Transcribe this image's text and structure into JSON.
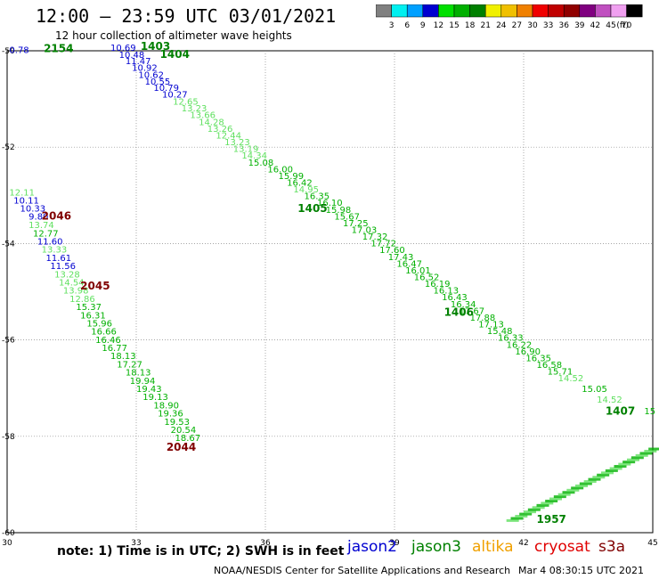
{
  "header": {
    "title": "12:00 – 23:59 UTC 03/01/2021",
    "subtitle": "12 hour collection of altimeter wave heights"
  },
  "legend": {
    "units": "(ft)",
    "bins": [
      {
        "label": "3",
        "color": "#808080"
      },
      {
        "label": "6",
        "color": "#00f0f0"
      },
      {
        "label": "9",
        "color": "#00a0ff"
      },
      {
        "label": "12",
        "color": "#0000d0"
      },
      {
        "label": "15",
        "color": "#00e000"
      },
      {
        "label": "18",
        "color": "#00b000"
      },
      {
        "label": "21",
        "color": "#008000"
      },
      {
        "label": "24",
        "color": "#f0f000"
      },
      {
        "label": "27",
        "color": "#f0c000"
      },
      {
        "label": "30",
        "color": "#f08000"
      },
      {
        "label": "33",
        "color": "#f00000"
      },
      {
        "label": "36",
        "color": "#c00000"
      },
      {
        "label": "39",
        "color": "#900000"
      },
      {
        "label": "42",
        "color": "#800080"
      },
      {
        "label": "45",
        "color": "#c050c0"
      },
      {
        "label": "70",
        "color": "#f0a0f0"
      },
      {
        "label": "",
        "color": "#000000"
      }
    ]
  },
  "map": {
    "lon_range": [
      30,
      45
    ],
    "lat_range": [
      -60,
      -50
    ],
    "lon_ticks": [
      {
        "value": 30,
        "label": "30"
      },
      {
        "value": 33,
        "label": "33"
      },
      {
        "value": 36,
        "label": "36"
      },
      {
        "value": 39,
        "label": "39"
      },
      {
        "value": 42,
        "label": "42"
      },
      {
        "value": 45,
        "label": "45"
      }
    ],
    "lat_ticks": [
      {
        "value": -50,
        "label": "-50"
      },
      {
        "value": -52,
        "label": "-52"
      },
      {
        "value": -54,
        "label": "-54"
      },
      {
        "value": -56,
        "label": "-56"
      },
      {
        "value": -58,
        "label": "-58"
      },
      {
        "value": -60,
        "label": "-60"
      }
    ],
    "track_labels": [
      {
        "text": "2154",
        "lon": 30.85,
        "lat": -50.03,
        "color": "#008000"
      },
      {
        "text": "1403",
        "lon": 33.1,
        "lat": -49.98,
        "color": "#008000"
      },
      {
        "text": "1404",
        "lon": 33.55,
        "lat": -50.15,
        "color": "#008000"
      },
      {
        "text": "1405",
        "lon": 36.75,
        "lat": -53.35,
        "color": "#008000"
      },
      {
        "text": "1406",
        "lon": 40.15,
        "lat": -55.5,
        "color": "#008000"
      },
      {
        "text": "1407",
        "lon": 43.9,
        "lat": -57.55,
        "color": "#008000"
      },
      {
        "text": "2046",
        "lon": 30.8,
        "lat": -53.5,
        "color": "#800000"
      },
      {
        "text": "2045",
        "lon": 31.7,
        "lat": -54.95,
        "color": "#800000"
      },
      {
        "text": "2044",
        "lon": 33.7,
        "lat": -58.3,
        "color": "#800000"
      },
      {
        "text": "1957",
        "lon": 42.3,
        "lat": -59.8,
        "color": "#008000"
      }
    ],
    "observations": [
      {
        "v": "0.78",
        "lon": 30.05,
        "lat": -50.05,
        "c": "#0000d0"
      },
      {
        "v": "10.69",
        "lon": 32.4,
        "lat": -50.0,
        "c": "#0000d0"
      },
      {
        "v": "10.48",
        "lon": 32.6,
        "lat": -50.15,
        "c": "#0000d0"
      },
      {
        "v": "11.47",
        "lon": 32.75,
        "lat": -50.28,
        "c": "#0000d0"
      },
      {
        "v": "10.92",
        "lon": 32.9,
        "lat": -50.42,
        "c": "#0000d0"
      },
      {
        "v": "10.62",
        "lon": 33.05,
        "lat": -50.56,
        "c": "#0000d0"
      },
      {
        "v": "10.55",
        "lon": 33.2,
        "lat": -50.7,
        "c": "#0000d0"
      },
      {
        "v": "10.79",
        "lon": 33.4,
        "lat": -50.83,
        "c": "#0000d0"
      },
      {
        "v": "10.27",
        "lon": 33.6,
        "lat": -50.97,
        "c": "#0000d0"
      },
      {
        "v": "12.65",
        "lon": 33.85,
        "lat": -51.12,
        "c": "#60e060"
      },
      {
        "v": "13.23",
        "lon": 34.05,
        "lat": -51.26,
        "c": "#60e060"
      },
      {
        "v": "13.66",
        "lon": 34.25,
        "lat": -51.4,
        "c": "#60e060"
      },
      {
        "v": "14.28",
        "lon": 34.45,
        "lat": -51.54,
        "c": "#60e060"
      },
      {
        "v": "13.26",
        "lon": 34.65,
        "lat": -51.68,
        "c": "#60e060"
      },
      {
        "v": "12.44",
        "lon": 34.85,
        "lat": -51.82,
        "c": "#60e060"
      },
      {
        "v": "13.23",
        "lon": 35.05,
        "lat": -51.96,
        "c": "#60e060"
      },
      {
        "v": "13.19",
        "lon": 35.25,
        "lat": -52.1,
        "c": "#60e060"
      },
      {
        "v": "14.34",
        "lon": 35.45,
        "lat": -52.24,
        "c": "#60e060"
      },
      {
        "v": "15.08",
        "lon": 35.6,
        "lat": -52.38,
        "c": "#00b000"
      },
      {
        "v": "16.00",
        "lon": 36.05,
        "lat": -52.52,
        "c": "#00b000"
      },
      {
        "v": "15.99",
        "lon": 36.3,
        "lat": -52.66,
        "c": "#00b000"
      },
      {
        "v": "16.42",
        "lon": 36.5,
        "lat": -52.8,
        "c": "#00b000"
      },
      {
        "v": "14.95",
        "lon": 36.65,
        "lat": -52.94,
        "c": "#60e060"
      },
      {
        "v": "16.35",
        "lon": 36.9,
        "lat": -53.08,
        "c": "#00b000"
      },
      {
        "v": "16.10",
        "lon": 37.2,
        "lat": -53.22,
        "c": "#00b000"
      },
      {
        "v": "15.98",
        "lon": 37.4,
        "lat": -53.36,
        "c": "#00b000"
      },
      {
        "v": "15.67",
        "lon": 37.6,
        "lat": -53.5,
        "c": "#00b000"
      },
      {
        "v": "17.25",
        "lon": 37.8,
        "lat": -53.64,
        "c": "#00b000"
      },
      {
        "v": "17.03",
        "lon": 38.0,
        "lat": -53.78,
        "c": "#00b000"
      },
      {
        "v": "17.32",
        "lon": 38.25,
        "lat": -53.92,
        "c": "#00b000"
      },
      {
        "v": "17.72",
        "lon": 38.45,
        "lat": -54.06,
        "c": "#00b000"
      },
      {
        "v": "17.60",
        "lon": 38.65,
        "lat": -54.2,
        "c": "#00b000"
      },
      {
        "v": "17.43",
        "lon": 38.85,
        "lat": -54.34,
        "c": "#00b000"
      },
      {
        "v": "16.47",
        "lon": 39.05,
        "lat": -54.48,
        "c": "#00b000"
      },
      {
        "v": "16.01",
        "lon": 39.25,
        "lat": -54.62,
        "c": "#00b000"
      },
      {
        "v": "16.52",
        "lon": 39.45,
        "lat": -54.76,
        "c": "#00b000"
      },
      {
        "v": "16.19",
        "lon": 39.7,
        "lat": -54.9,
        "c": "#00b000"
      },
      {
        "v": "16.13",
        "lon": 39.9,
        "lat": -55.04,
        "c": "#00b000"
      },
      {
        "v": "16.43",
        "lon": 40.1,
        "lat": -55.18,
        "c": "#00b000"
      },
      {
        "v": "16.34",
        "lon": 40.3,
        "lat": -55.32,
        "c": "#00b000"
      },
      {
        "v": "17.67",
        "lon": 40.5,
        "lat": -55.46,
        "c": "#00b000"
      },
      {
        "v": "17.88",
        "lon": 40.75,
        "lat": -55.6,
        "c": "#00b000"
      },
      {
        "v": "17.13",
        "lon": 40.95,
        "lat": -55.74,
        "c": "#00b000"
      },
      {
        "v": "15.48",
        "lon": 41.15,
        "lat": -55.88,
        "c": "#00b000"
      },
      {
        "v": "16.33",
        "lon": 41.4,
        "lat": -56.02,
        "c": "#00b000"
      },
      {
        "v": "16.22",
        "lon": 41.6,
        "lat": -56.16,
        "c": "#00b000"
      },
      {
        "v": "16.90",
        "lon": 41.8,
        "lat": -56.3,
        "c": "#00b000"
      },
      {
        "v": "16.35",
        "lon": 42.05,
        "lat": -56.44,
        "c": "#00b000"
      },
      {
        "v": "16.58",
        "lon": 42.3,
        "lat": -56.58,
        "c": "#00b000"
      },
      {
        "v": "15.71",
        "lon": 42.55,
        "lat": -56.72,
        "c": "#00b000"
      },
      {
        "v": "14.52",
        "lon": 42.8,
        "lat": -56.86,
        "c": "#60e060"
      },
      {
        "v": "15.05",
        "lon": 43.35,
        "lat": -57.08,
        "c": "#00b000"
      },
      {
        "v": "14.52",
        "lon": 43.7,
        "lat": -57.3,
        "c": "#60e060"
      },
      {
        "v": "15",
        "lon": 44.8,
        "lat": -57.54,
        "c": "#00b000"
      },
      {
        "v": "12.11",
        "lon": 30.05,
        "lat": -53.0,
        "c": "#60e060"
      },
      {
        "v": "10.11",
        "lon": 30.15,
        "lat": -53.17,
        "c": "#0000d0"
      },
      {
        "v": "10.33",
        "lon": 30.3,
        "lat": -53.34,
        "c": "#0000d0"
      },
      {
        "v": "9.80",
        "lon": 30.5,
        "lat": -53.5,
        "c": "#0000d0"
      },
      {
        "v": "13.74",
        "lon": 30.5,
        "lat": -53.68,
        "c": "#60e060"
      },
      {
        "v": "12.77",
        "lon": 30.6,
        "lat": -53.85,
        "c": "#00b000"
      },
      {
        "v": "11.60",
        "lon": 30.7,
        "lat": -54.02,
        "c": "#0000d0"
      },
      {
        "v": "13.33",
        "lon": 30.8,
        "lat": -54.19,
        "c": "#60e060"
      },
      {
        "v": "11.61",
        "lon": 30.9,
        "lat": -54.36,
        "c": "#0000d0"
      },
      {
        "v": "11.56",
        "lon": 31.0,
        "lat": -54.53,
        "c": "#0000d0"
      },
      {
        "v": "13.28",
        "lon": 31.1,
        "lat": -54.7,
        "c": "#60e060"
      },
      {
        "v": "14.54",
        "lon": 31.2,
        "lat": -54.87,
        "c": "#60e060"
      },
      {
        "v": "13.98",
        "lon": 31.3,
        "lat": -55.04,
        "c": "#60e060"
      },
      {
        "v": "12.86",
        "lon": 31.45,
        "lat": -55.21,
        "c": "#60e060"
      },
      {
        "v": "15.37",
        "lon": 31.6,
        "lat": -55.38,
        "c": "#00b000"
      },
      {
        "v": "16.31",
        "lon": 31.7,
        "lat": -55.55,
        "c": "#00b000"
      },
      {
        "v": "15.96",
        "lon": 31.85,
        "lat": -55.72,
        "c": "#00b000"
      },
      {
        "v": "16.66",
        "lon": 31.95,
        "lat": -55.89,
        "c": "#00b000"
      },
      {
        "v": "16.46",
        "lon": 32.05,
        "lat": -56.06,
        "c": "#00b000"
      },
      {
        "v": "16.77",
        "lon": 32.2,
        "lat": -56.23,
        "c": "#00b000"
      },
      {
        "v": "18.13",
        "lon": 32.4,
        "lat": -56.4,
        "c": "#00b000"
      },
      {
        "v": "17.27",
        "lon": 32.55,
        "lat": -56.57,
        "c": "#00b000"
      },
      {
        "v": "18.13",
        "lon": 32.75,
        "lat": -56.74,
        "c": "#00b000"
      },
      {
        "v": "19.94",
        "lon": 32.85,
        "lat": -56.91,
        "c": "#00b000"
      },
      {
        "v": "19.43",
        "lon": 33.0,
        "lat": -57.08,
        "c": "#00b000"
      },
      {
        "v": "19.13",
        "lon": 33.15,
        "lat": -57.25,
        "c": "#00b000"
      },
      {
        "v": "18.90",
        "lon": 33.4,
        "lat": -57.42,
        "c": "#00b000"
      },
      {
        "v": "19.36",
        "lon": 33.5,
        "lat": -57.59,
        "c": "#00b000"
      },
      {
        "v": "19.53",
        "lon": 33.65,
        "lat": -57.76,
        "c": "#00b000"
      },
      {
        "v": "20.54",
        "lon": 33.8,
        "lat": -57.93,
        "c": "#00b000"
      },
      {
        "v": "18.67",
        "lon": 33.9,
        "lat": -58.1,
        "c": "#00b000"
      }
    ]
  },
  "footer": {
    "note": "note: 1) Time is in UTC; 2) SWH is in feet",
    "satellites": [
      {
        "name": "jason2",
        "color": "#0000d0"
      },
      {
        "name": "jason3",
        "color": "#008000"
      },
      {
        "name": "altika",
        "color": "#f0a000"
      },
      {
        "name": "cryosat",
        "color": "#e00000"
      },
      {
        "name": "s3a",
        "color": "#800000"
      }
    ],
    "credit": "NOAA/NESDIS Center for Satellite Applications and Research",
    "timestamp": "Mar  4 08:30:15 UTC 2021"
  }
}
